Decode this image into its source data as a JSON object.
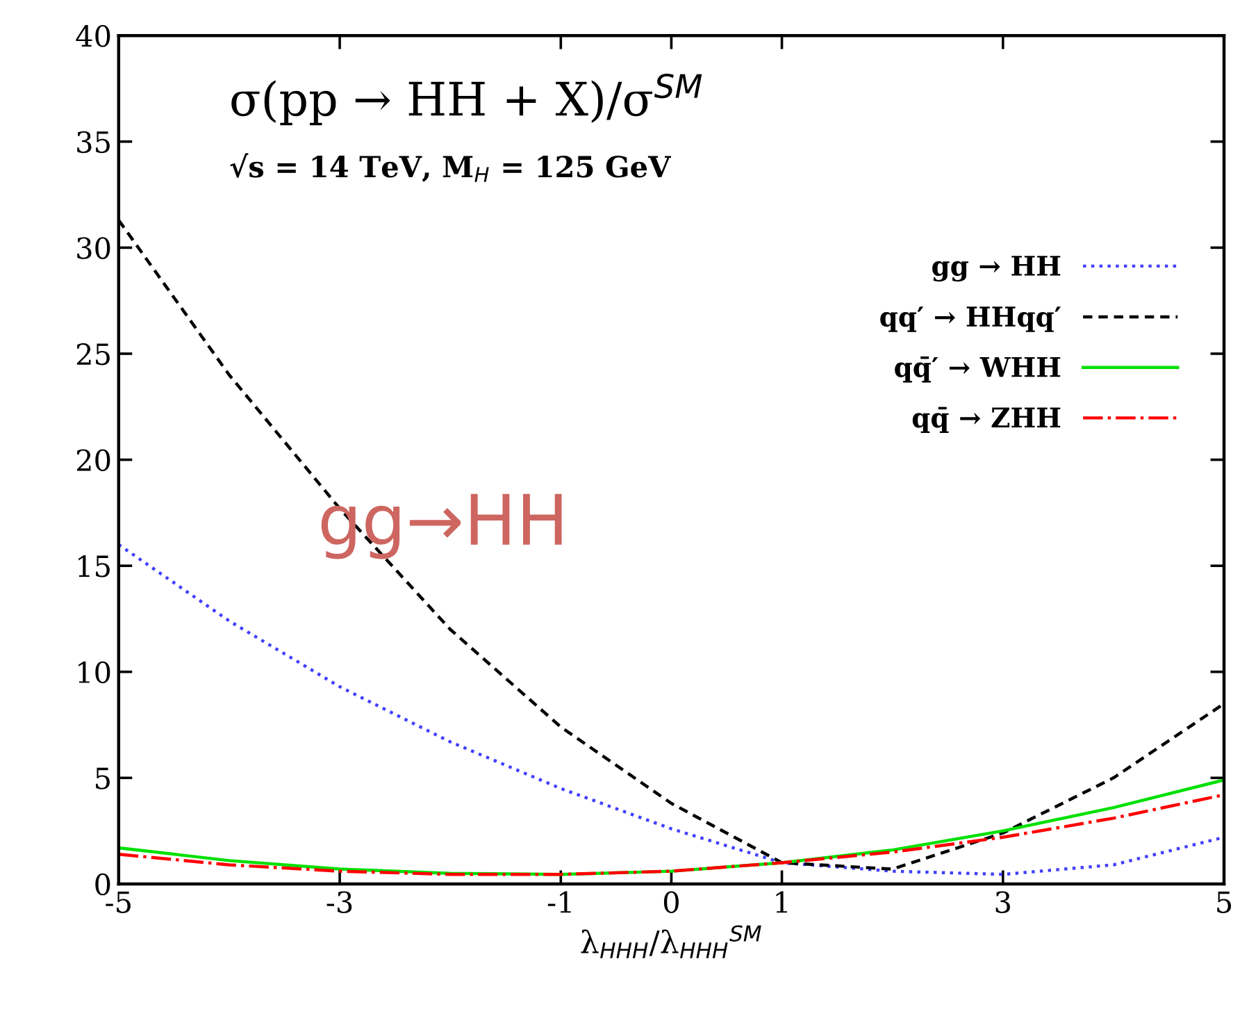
{
  "chart_data": {
    "type": "line",
    "title": "σ(pp → HH + X)/σ$^{SM}$",
    "subtitle": "√s = 14 TeV, M$_{H}$ = 125 GeV",
    "xlabel": "λ$_{HHH}$/λ$_{HHH}$$^{SM}$",
    "annotations": [
      "gg→HH"
    ],
    "x": [
      -5,
      -4,
      -3,
      -2,
      -1,
      0,
      1,
      2,
      3,
      4,
      5
    ],
    "series": [
      {
        "name": "gg → HH",
        "color": "#4040ff",
        "line_style": "dotted",
        "values": [
          16,
          12.4,
          9.3,
          6.7,
          4.5,
          2.6,
          1.0,
          0.6,
          0.45,
          0.9,
          2.2
        ]
      },
      {
        "name": "qq′ → HHqq′",
        "color": "#000000",
        "line_style": "dashed",
        "values": [
          31.3,
          24,
          17.7,
          12,
          7.4,
          3.8,
          1.0,
          0.7,
          2.4,
          5,
          8.5
        ]
      },
      {
        "name": "qq̄′ → WHH",
        "color": "#00e000",
        "line_style": "solid",
        "values": [
          1.7,
          1.1,
          0.7,
          0.5,
          0.45,
          0.6,
          1.0,
          1.6,
          2.5,
          3.6,
          4.9
        ]
      },
      {
        "name": "qq̄ → ZHH",
        "color": "#ff0000",
        "line_style": "dashdot",
        "values": [
          1.4,
          0.9,
          0.6,
          0.45,
          0.45,
          0.6,
          1.0,
          1.5,
          2.2,
          3.1,
          4.2
        ]
      }
    ],
    "xlim": [
      -5,
      5
    ],
    "ylim": [
      0,
      40
    ],
    "xticks": [
      -5,
      -3,
      -1,
      0,
      1,
      3,
      5
    ],
    "yticks": [
      0,
      5,
      10,
      15,
      20,
      25,
      30,
      35,
      40
    ],
    "grid": false,
    "legend": "top right",
    "marker": "none"
  }
}
